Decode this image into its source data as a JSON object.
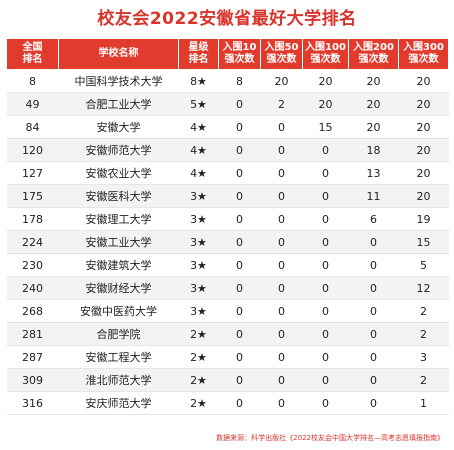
{
  "title": "校友会2022安徽省最好大学排名",
  "headers": [
    [
      "全国",
      "排名"
    ],
    [
      "学校名称",
      ""
    ],
    [
      "星级",
      "排名"
    ],
    [
      "入围10",
      "强次数"
    ],
    [
      "入围50",
      "强次数"
    ],
    [
      "入围100",
      "强次数"
    ],
    [
      "入围200",
      "强次数"
    ],
    [
      "入围300",
      "强次数"
    ]
  ],
  "rows": [
    [
      "8",
      "中国科学技术大学",
      "8★",
      "8",
      "20",
      "20",
      "20",
      "20"
    ],
    [
      "49",
      "合肥工业大学",
      "5★",
      "0",
      "2",
      "20",
      "20",
      "20"
    ],
    [
      "84",
      "安徽大学",
      "4★",
      "0",
      "0",
      "15",
      "20",
      "20"
    ],
    [
      "120",
      "安徽师范大学",
      "4★",
      "0",
      "0",
      "0",
      "18",
      "20"
    ],
    [
      "127",
      "安徽农业大学",
      "4★",
      "0",
      "0",
      "0",
      "13",
      "20"
    ],
    [
      "175",
      "安徽医科大学",
      "3★",
      "0",
      "0",
      "0",
      "11",
      "20"
    ],
    [
      "178",
      "安徽理工大学",
      "3★",
      "0",
      "0",
      "0",
      "6",
      "19"
    ],
    [
      "224",
      "安徽工业大学",
      "3★",
      "0",
      "0",
      "0",
      "0",
      "15"
    ],
    [
      "230",
      "安徽建筑大学",
      "3★",
      "0",
      "0",
      "0",
      "0",
      "5"
    ],
    [
      "240",
      "安徽财经大学",
      "3★",
      "0",
      "0",
      "0",
      "0",
      "12"
    ],
    [
      "268",
      "安徽中医药大学",
      "3★",
      "0",
      "0",
      "0",
      "0",
      "2"
    ],
    [
      "281",
      "合肥学院",
      "2★",
      "0",
      "0",
      "0",
      "0",
      "2"
    ],
    [
      "287",
      "安徽工程大学",
      "2★",
      "0",
      "0",
      "0",
      "0",
      "3"
    ],
    [
      "309",
      "淮北师范大学",
      "2★",
      "0",
      "0",
      "0",
      "0",
      "2"
    ],
    [
      "316",
      "安庆师范大学",
      "2★",
      "0",
      "0",
      "0",
      "0",
      "1"
    ]
  ],
  "footer": "数据来源：科学出版社《2022校友会中国大学排名—高考志愿填报指南》"
}
